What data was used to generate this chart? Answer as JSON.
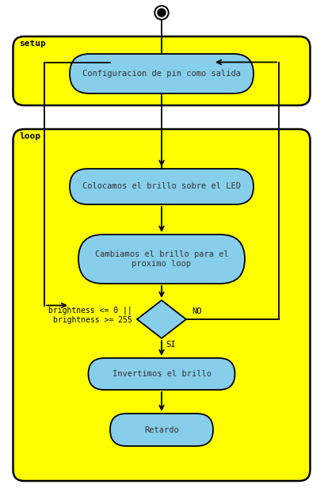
{
  "bg_color": "#ffffff",
  "yellow": "#FFFF00",
  "cyan_box": "#87CEEB",
  "box_edge": "#000000",
  "text_color": "#333333",
  "setup_label": "setup",
  "loop_label": "loop",
  "box1_text": "Configuracion de pin como salida",
  "box2_text": "Colocamos el brillo sobre el LED",
  "box3_text": "Cambiamos el brillo para el\nproximo loop",
  "diamond_label_no": "NO",
  "diamond_label_si": "SI",
  "diamond_condition": "brightness <= 0 ||\nbrightness >= 255",
  "box4_text": "Invertimos el brillo",
  "box5_text": "Retardo",
  "figw": 4.09,
  "figh": 6.21,
  "dpi": 100
}
